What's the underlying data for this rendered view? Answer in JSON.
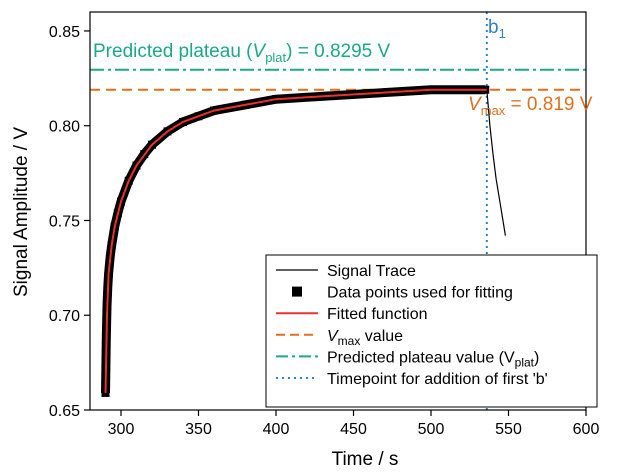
{
  "chart_data": {
    "type": "line",
    "xlabel": "Time / s",
    "ylabel": "Signal Amplitude / V",
    "xlim": [
      280,
      600
    ],
    "ylim": [
      0.65,
      0.86
    ],
    "xticks": [
      300,
      350,
      400,
      450,
      500,
      550,
      600
    ],
    "yticks": [
      0.65,
      0.7,
      0.75,
      0.8,
      0.85
    ],
    "xtick_labels": [
      "300",
      "350",
      "400",
      "450",
      "500",
      "550",
      "600"
    ],
    "ytick_labels": [
      "0.65",
      "0.70",
      "0.75",
      "0.80",
      "0.85"
    ],
    "grid": false,
    "legend_position": "bottom-right",
    "colors": {
      "signal": "#000000",
      "points": "#000000",
      "fit": "#e8322d",
      "vmax": "#e07020",
      "plateau": "#1aa88a",
      "timepoint": "#2f7fc1"
    },
    "series": [
      {
        "name": "Signal Trace",
        "x": [
          290,
          291,
          292,
          294,
          296,
          300,
          305,
          310,
          320,
          330,
          340,
          360,
          380,
          400,
          420,
          440,
          460,
          480,
          500,
          520,
          536,
          537,
          538,
          540,
          542,
          545,
          548
        ],
        "y": [
          0.659,
          0.7,
          0.722,
          0.737,
          0.747,
          0.76,
          0.771,
          0.779,
          0.79,
          0.797,
          0.802,
          0.808,
          0.811,
          0.814,
          0.815,
          0.816,
          0.817,
          0.818,
          0.819,
          0.819,
          0.819,
          0.81,
          0.8,
          0.785,
          0.772,
          0.757,
          0.742
        ]
      },
      {
        "name": "Data points used for fitting",
        "x": [
          290,
          290.5,
          291,
          291.5,
          292,
          293,
          294,
          296,
          298,
          300,
          305,
          310,
          315,
          320,
          330,
          340,
          350,
          360,
          380,
          400,
          420,
          440,
          460,
          480,
          500,
          520,
          535
        ],
        "y": [
          0.659,
          0.688,
          0.705,
          0.715,
          0.722,
          0.731,
          0.737,
          0.747,
          0.754,
          0.76,
          0.771,
          0.779,
          0.785,
          0.79,
          0.797,
          0.802,
          0.805,
          0.808,
          0.811,
          0.814,
          0.815,
          0.816,
          0.817,
          0.818,
          0.819,
          0.819,
          0.819
        ]
      },
      {
        "name": "Fitted function",
        "x": [
          290,
          291,
          292,
          294,
          296,
          300,
          305,
          310,
          320,
          330,
          340,
          360,
          380,
          400,
          420,
          440,
          460,
          480,
          500,
          520,
          536
        ],
        "y": [
          0.659,
          0.7,
          0.722,
          0.737,
          0.747,
          0.76,
          0.771,
          0.779,
          0.79,
          0.797,
          0.802,
          0.808,
          0.811,
          0.814,
          0.815,
          0.816,
          0.817,
          0.818,
          0.819,
          0.819,
          0.819
        ]
      }
    ],
    "reference_lines": {
      "vmax": {
        "value": 0.819
      },
      "plateau": {
        "value": 0.8295
      },
      "timepoint": {
        "value": 536
      }
    },
    "legend": [
      {
        "key": "signal",
        "label": "Signal Trace",
        "style": "line"
      },
      {
        "key": "points",
        "label": "Data points used for fitting",
        "style": "square"
      },
      {
        "key": "fit",
        "label": "Fitted function",
        "style": "line"
      },
      {
        "key": "vmax",
        "label": "V",
        "sub": "max",
        "after": " value",
        "style": "dash"
      },
      {
        "key": "plateau",
        "label": "Predicted plateau value (V",
        "sub": "plat",
        "after": ")",
        "style": "dashdot"
      },
      {
        "key": "timepoint",
        "label": "Timepoint for addition of first 'b'",
        "style": "dot"
      }
    ],
    "annotations": {
      "plateau_prefix": "Predicted plateau (",
      "plateau_var": "V",
      "plateau_sub": "plat",
      "plateau_suffix": ") = 0.8295 V",
      "vmax_var": "V",
      "vmax_sub": "max",
      "vmax_suffix": " = 0.819 V",
      "b_letter": "b",
      "b_sub": "1"
    }
  }
}
